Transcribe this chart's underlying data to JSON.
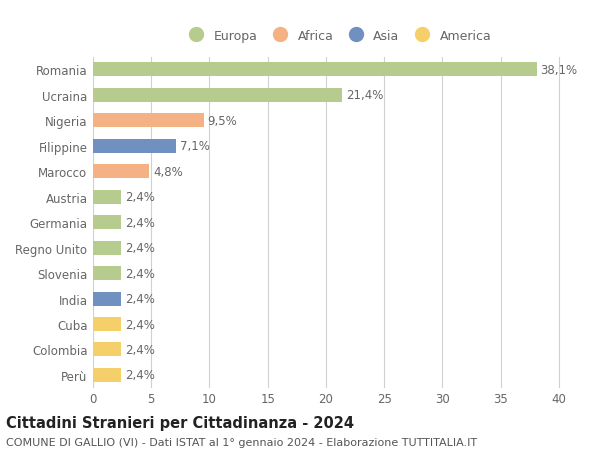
{
  "countries": [
    "Romania",
    "Ucraina",
    "Nigeria",
    "Filippine",
    "Marocco",
    "Austria",
    "Germania",
    "Regno Unito",
    "Slovenia",
    "India",
    "Cuba",
    "Colombia",
    "Perù"
  ],
  "values": [
    38.1,
    21.4,
    9.5,
    7.1,
    4.8,
    2.4,
    2.4,
    2.4,
    2.4,
    2.4,
    2.4,
    2.4,
    2.4
  ],
  "continents": [
    "Europa",
    "Europa",
    "Africa",
    "Asia",
    "Africa",
    "Europa",
    "Europa",
    "Europa",
    "Europa",
    "Asia",
    "America",
    "America",
    "America"
  ],
  "colors": {
    "Europa": "#b5cc8e",
    "Africa": "#f4b183",
    "Asia": "#7090c0",
    "America": "#f5d06a"
  },
  "xlim": [
    0,
    42
  ],
  "xticks": [
    0,
    5,
    10,
    15,
    20,
    25,
    30,
    35,
    40
  ],
  "title": "Cittadini Stranieri per Cittadinanza - 2024",
  "subtitle": "COMUNE DI GALLIO (VI) - Dati ISTAT al 1° gennaio 2024 - Elaborazione TUTTITALIA.IT",
  "background_color": "#ffffff",
  "grid_color": "#d0d0d0",
  "bar_height": 0.55,
  "label_fontsize": 8.5,
  "tick_fontsize": 8.5,
  "title_fontsize": 10.5,
  "subtitle_fontsize": 8.0,
  "legend_order": [
    "Europa",
    "Africa",
    "Asia",
    "America"
  ]
}
